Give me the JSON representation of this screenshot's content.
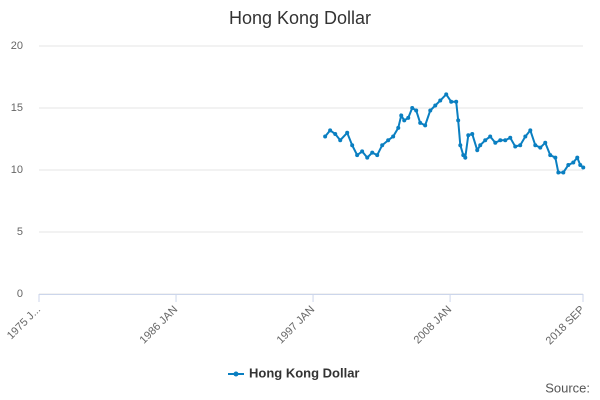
{
  "chart_data": {
    "type": "line",
    "title": "Hong Kong Dollar",
    "credit": "Source:",
    "x": [
      1997.97,
      1998.37,
      1998.78,
      1999.18,
      1999.74,
      2000.14,
      2000.54,
      2000.94,
      2001.35,
      2001.75,
      2002.15,
      2002.55,
      2003.03,
      2003.43,
      2003.84,
      2004.08,
      2004.32,
      2004.64,
      2004.96,
      2005.28,
      2005.6,
      2006.0,
      2006.41,
      2006.81,
      2007.21,
      2007.69,
      2008.09,
      2008.49,
      2008.65,
      2008.82,
      2009.06,
      2009.22,
      2009.46,
      2009.78,
      2010.18,
      2010.42,
      2010.82,
      2011.22,
      2011.63,
      2012.03,
      2012.43,
      2012.83,
      2013.23,
      2013.63,
      2014.04,
      2014.44,
      2014.84,
      2015.24,
      2015.64,
      2016.04,
      2016.45,
      2016.69,
      2017.09,
      2017.49,
      2017.89,
      2018.21,
      2018.45,
      2018.69
    ],
    "series": [
      {
        "name": "Hong Kong Dollar",
        "color": "#0a7fc1",
        "values": [
          12.7,
          13.2,
          12.9,
          12.4,
          13.0,
          12.0,
          11.2,
          11.5,
          11.0,
          11.4,
          11.2,
          12.0,
          12.4,
          12.7,
          13.4,
          14.4,
          14.0,
          14.2,
          15.0,
          14.8,
          13.8,
          13.6,
          14.8,
          15.2,
          15.6,
          16.1,
          15.5,
          15.5,
          14.0,
          12.0,
          11.2,
          11.0,
          12.8,
          12.9,
          11.6,
          12.0,
          12.4,
          12.7,
          12.2,
          12.4,
          12.4,
          12.6,
          11.9,
          12.0,
          12.7,
          13.2,
          12.0,
          11.8,
          12.2,
          11.2,
          11.0,
          9.8,
          9.8,
          10.4,
          10.6,
          11.0,
          10.4,
          10.2
        ]
      }
    ],
    "xlim": [
      1975,
      2018.67
    ],
    "xticks": [
      {
        "value": 1975,
        "label": "1975 J..."
      },
      {
        "value": 1986,
        "label": "1986 JAN"
      },
      {
        "value": 1997,
        "label": "1997 JAN"
      },
      {
        "value": 2008,
        "label": "2008 JAN"
      },
      {
        "value": 2018.67,
        "label": "2018 SEP"
      }
    ],
    "ylim": [
      0,
      20
    ],
    "yticks": [
      0,
      5,
      10,
      15,
      20
    ],
    "grid": true
  }
}
